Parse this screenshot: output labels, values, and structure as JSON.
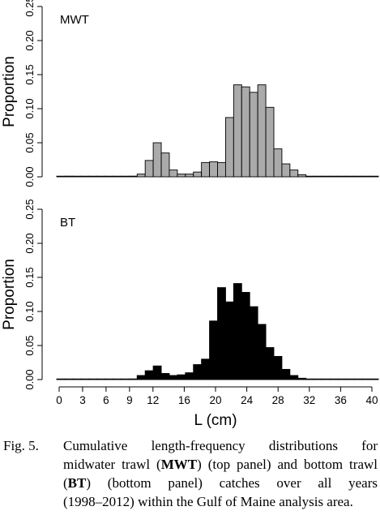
{
  "chart_data": [
    {
      "type": "bar",
      "panel_label": "MWT",
      "ylabel": "Proportion",
      "ylim": [
        0,
        0.25
      ],
      "yticks": [
        "0.00",
        "0.05",
        "0.10",
        "0.15",
        "0.20",
        "0.25"
      ],
      "bar_color": "#aaaaaa",
      "x": [
        0,
        1,
        2,
        3,
        4,
        5,
        6,
        7,
        8,
        9,
        10,
        11,
        12,
        13,
        14,
        15,
        16,
        17,
        18,
        19,
        20,
        21,
        22,
        23,
        24,
        25,
        26,
        27,
        28,
        29,
        30,
        31,
        32,
        33,
        34,
        35,
        36,
        37,
        38,
        39
      ],
      "values": [
        0.0005,
        0.001,
        0,
        0,
        0,
        0,
        0,
        0,
        0.0005,
        0.001,
        0.004,
        0.024,
        0.05,
        0.035,
        0.01,
        0.004,
        0.004,
        0.007,
        0.021,
        0.022,
        0.021,
        0.087,
        0.135,
        0.132,
        0.124,
        0.135,
        0.102,
        0.041,
        0.019,
        0.01,
        0.003,
        0,
        0,
        0,
        0,
        0,
        0,
        0,
        0,
        0
      ]
    },
    {
      "type": "bar",
      "panel_label": "BT",
      "ylabel": "Proportion",
      "xlabel": "L (cm)",
      "ylim": [
        0,
        0.25
      ],
      "yticks": [
        "0.00",
        "0.05",
        "0.10",
        "0.15",
        "0.20",
        "0.25"
      ],
      "xticks": [
        0,
        3,
        6,
        9,
        12,
        16,
        20,
        24,
        28,
        32,
        36,
        40
      ],
      "bar_color": "#000000",
      "x": [
        0,
        1,
        2,
        3,
        4,
        5,
        6,
        7,
        8,
        9,
        10,
        11,
        12,
        13,
        14,
        15,
        16,
        17,
        18,
        19,
        20,
        21,
        22,
        23,
        24,
        25,
        26,
        27,
        28,
        29,
        30,
        31,
        32,
        33,
        34,
        35,
        36,
        37,
        38,
        39
      ],
      "values": [
        0.0005,
        0.0005,
        0.0005,
        0,
        0,
        0,
        0,
        0,
        0.0005,
        0.001,
        0.006,
        0.013,
        0.02,
        0.009,
        0.006,
        0.007,
        0.01,
        0.022,
        0.03,
        0.086,
        0.135,
        0.114,
        0.141,
        0.128,
        0.107,
        0.081,
        0.047,
        0.034,
        0.015,
        0.006,
        0.002,
        0.0005,
        0,
        0,
        0,
        0,
        0,
        0,
        0,
        0
      ]
    }
  ],
  "caption": {
    "label": "Fig. 5.",
    "lines": [
      [
        {
          "t": "Cumulative length-frequency distributions for"
        }
      ],
      [
        {
          "t": "midwater trawl ("
        },
        {
          "t": "MWT",
          "b": true
        },
        {
          "t": ") (top panel) and bottom trawl"
        }
      ],
      [
        {
          "t": "("
        },
        {
          "t": "BT",
          "b": true
        },
        {
          "t": ") (bottom panel) catches over all years"
        }
      ],
      [
        {
          "t": "(1998–2012) within the Gulf of Maine analysis area."
        }
      ]
    ]
  }
}
